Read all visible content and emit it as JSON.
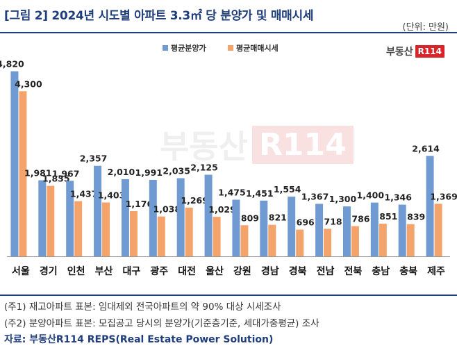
{
  "header": {
    "title": "[그림 2] 2024년 시도별 아파트 3.3㎡ 당 분양가 및 매매시세",
    "unit": "(단위: 만원)"
  },
  "logo": {
    "text": "부동산",
    "badge": "R114"
  },
  "watermark": {
    "text": "부동산",
    "badge": "R114"
  },
  "colors": {
    "presale": "#6f9bd2",
    "sale": "#f4a46a",
    "accent": "#1f3d7a"
  },
  "chart_data": {
    "type": "bar",
    "categories": [
      "서울",
      "경기",
      "인천",
      "부산",
      "대구",
      "광주",
      "대전",
      "울산",
      "강원",
      "경남",
      "경북",
      "전남",
      "전북",
      "충남",
      "충북",
      "제주"
    ],
    "series": [
      {
        "name": "평균분양가",
        "values": [
          4820,
          1981,
          1967,
          2357,
          2010,
          1991,
          2035,
          2125,
          1475,
          1451,
          1554,
          1367,
          1300,
          1400,
          1346,
          2614
        ]
      },
      {
        "name": "평균매매시세",
        "values": [
          4300,
          1835,
          1437,
          1403,
          1176,
          1038,
          1269,
          1029,
          809,
          821,
          696,
          718,
          786,
          851,
          839,
          1369
        ]
      }
    ],
    "ylim": [
      0,
      5500
    ],
    "legend_position": "top-center",
    "grid": false
  },
  "notes": [
    "(주1) 재고아파트 표본: 임대제외 전국아파트의 약 90% 대상 시세조사",
    "(주2) 분양아파트 표본: 모집공고 당시의 분양가(기준층기준, 세대가중평균) 조사"
  ],
  "source": "자료: 부동산R114 REPS(Real Estate Power Solution)"
}
